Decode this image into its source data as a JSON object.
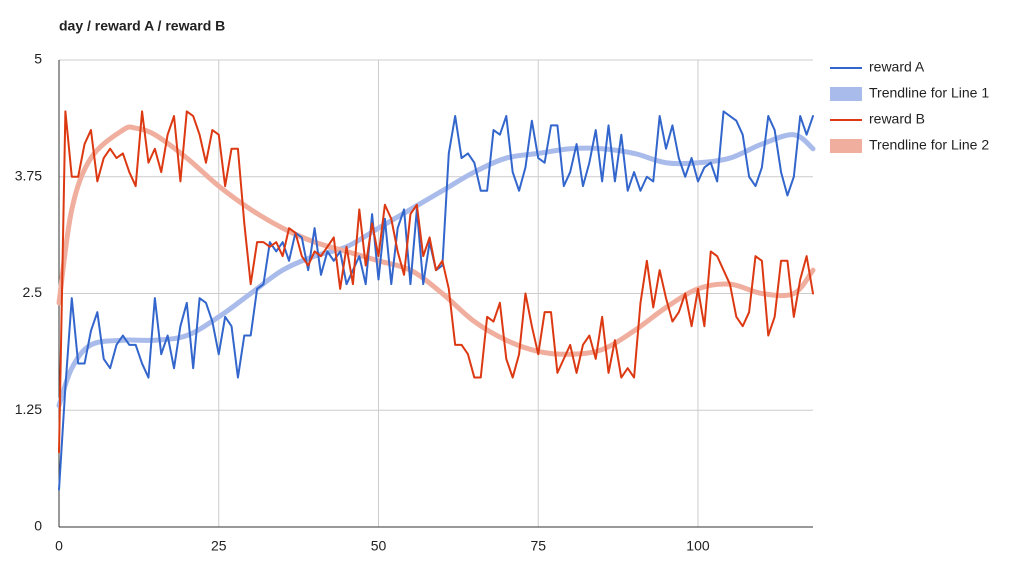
{
  "chart_data": {
    "type": "line",
    "title": "day / reward A / reward B",
    "x": [
      0,
      1,
      2,
      3,
      4,
      5,
      6,
      7,
      8,
      9,
      10,
      11,
      12,
      13,
      14,
      15,
      16,
      17,
      18,
      19,
      20,
      21,
      22,
      23,
      24,
      25,
      26,
      27,
      28,
      29,
      30,
      31,
      32,
      33,
      34,
      35,
      36,
      37,
      38,
      39,
      40,
      41,
      42,
      43,
      44,
      45,
      46,
      47,
      48,
      49,
      50,
      51,
      52,
      53,
      54,
      55,
      56,
      57,
      58,
      59,
      60,
      61,
      62,
      63,
      64,
      65,
      66,
      67,
      68,
      69,
      70,
      71,
      72,
      73,
      74,
      75,
      76,
      77,
      78,
      79,
      80,
      81,
      82,
      83,
      84,
      85,
      86,
      87,
      88,
      89,
      90,
      91,
      92,
      93,
      94,
      95,
      96,
      97,
      98,
      99,
      100,
      101,
      102,
      103,
      104,
      105,
      106,
      107,
      108,
      109,
      110,
      111,
      112,
      113,
      114,
      115,
      116,
      117,
      118
    ],
    "xlim": [
      0,
      118
    ],
    "xticks": [
      0,
      25,
      50,
      75,
      100
    ],
    "ylim": [
      0,
      5
    ],
    "yticks": [
      0,
      1.25,
      2.5,
      3.75,
      5
    ],
    "grid": true,
    "legend": "right",
    "series": [
      {
        "name": "reward A",
        "color": "#3366cc",
        "values": [
          0.4,
          1.5,
          2.45,
          1.75,
          1.75,
          2.1,
          2.3,
          1.8,
          1.7,
          1.95,
          2.05,
          1.95,
          1.95,
          1.75,
          1.6,
          2.45,
          1.85,
          2.05,
          1.7,
          2.15,
          2.4,
          1.7,
          2.45,
          2.4,
          2.2,
          1.85,
          2.25,
          2.15,
          1.6,
          2.05,
          2.05,
          2.55,
          2.6,
          3.05,
          2.95,
          3.05,
          2.85,
          3.15,
          3.1,
          2.75,
          3.2,
          2.7,
          2.95,
          2.85,
          2.95,
          2.6,
          2.75,
          2.9,
          2.6,
          3.35,
          2.65,
          3.3,
          2.6,
          3.2,
          3.4,
          2.6,
          3.4,
          2.6,
          3.05,
          2.75,
          2.8,
          4.0,
          4.4,
          3.95,
          4.0,
          3.9,
          3.6,
          3.6,
          4.25,
          4.2,
          4.4,
          3.8,
          3.6,
          3.85,
          4.35,
          3.95,
          3.9,
          4.3,
          4.3,
          3.65,
          3.8,
          4.1,
          3.65,
          3.9,
          4.25,
          3.7,
          4.3,
          3.7,
          4.2,
          3.6,
          3.8,
          3.6,
          3.75,
          3.7,
          4.4,
          4.05,
          4.3,
          3.95,
          3.75,
          3.95,
          3.7,
          3.85,
          3.9,
          3.7,
          4.45,
          4.4,
          4.35,
          4.2,
          3.75,
          3.65,
          3.85,
          4.4,
          4.25,
          3.8,
          3.55,
          3.75,
          4.4,
          4.2,
          4.4
        ]
      },
      {
        "name": "Trendline for Line 1",
        "type": "trendline",
        "color": "#a9bbea",
        "x": [
          0,
          2,
          5,
          10,
          15,
          20,
          25,
          30,
          35,
          40,
          45,
          50,
          55,
          60,
          65,
          70,
          75,
          80,
          85,
          90,
          95,
          100,
          105,
          110,
          115,
          118
        ],
        "values": [
          1.3,
          1.7,
          1.95,
          2.0,
          2.0,
          2.05,
          2.25,
          2.5,
          2.75,
          2.9,
          3.0,
          3.2,
          3.4,
          3.6,
          3.8,
          3.95,
          4.0,
          4.05,
          4.05,
          4.0,
          3.9,
          3.9,
          3.95,
          4.1,
          4.2,
          4.05
        ]
      },
      {
        "name": "reward B",
        "color": "#dc3912",
        "values": [
          0.8,
          4.45,
          3.75,
          3.75,
          4.1,
          4.25,
          3.7,
          3.95,
          4.05,
          3.95,
          4.0,
          3.8,
          3.65,
          4.45,
          3.9,
          4.05,
          3.8,
          4.2,
          4.4,
          3.7,
          4.45,
          4.4,
          4.2,
          3.9,
          4.25,
          4.2,
          3.65,
          4.05,
          4.05,
          3.25,
          2.6,
          3.05,
          3.05,
          3.0,
          3.05,
          2.9,
          3.2,
          3.15,
          2.9,
          2.8,
          2.95,
          2.9,
          3.0,
          3.1,
          2.55,
          3.0,
          2.6,
          3.4,
          2.8,
          3.25,
          2.9,
          3.45,
          3.3,
          2.95,
          2.7,
          3.35,
          3.45,
          2.9,
          3.1,
          2.75,
          2.85,
          2.55,
          1.95,
          1.95,
          1.85,
          1.6,
          1.6,
          2.25,
          2.2,
          2.4,
          1.8,
          1.6,
          1.85,
          2.5,
          2.15,
          1.85,
          2.3,
          2.3,
          1.65,
          1.8,
          1.95,
          1.65,
          1.95,
          2.05,
          1.8,
          2.25,
          1.65,
          2.0,
          1.6,
          1.7,
          1.6,
          2.4,
          2.85,
          2.35,
          2.75,
          2.45,
          2.2,
          2.3,
          2.5,
          2.15,
          2.55,
          2.15,
          2.95,
          2.9,
          2.75,
          2.6,
          2.25,
          2.15,
          2.3,
          2.9,
          2.85,
          2.05,
          2.25,
          2.85,
          2.85,
          2.25,
          2.65,
          2.9,
          2.5
        ]
      },
      {
        "name": "Trendline for Line 2",
        "type": "trendline",
        "color": "#f0ae9e",
        "x": [
          0,
          2,
          5,
          10,
          12,
          15,
          20,
          25,
          30,
          35,
          40,
          45,
          50,
          55,
          60,
          65,
          70,
          75,
          80,
          85,
          90,
          95,
          100,
          105,
          110,
          115,
          118
        ],
        "values": [
          2.4,
          3.4,
          3.95,
          4.25,
          4.27,
          4.2,
          3.95,
          3.65,
          3.4,
          3.2,
          3.05,
          2.95,
          2.85,
          2.75,
          2.5,
          2.2,
          2.0,
          1.88,
          1.85,
          1.9,
          2.1,
          2.35,
          2.55,
          2.6,
          2.5,
          2.5,
          2.75
        ]
      }
    ]
  }
}
